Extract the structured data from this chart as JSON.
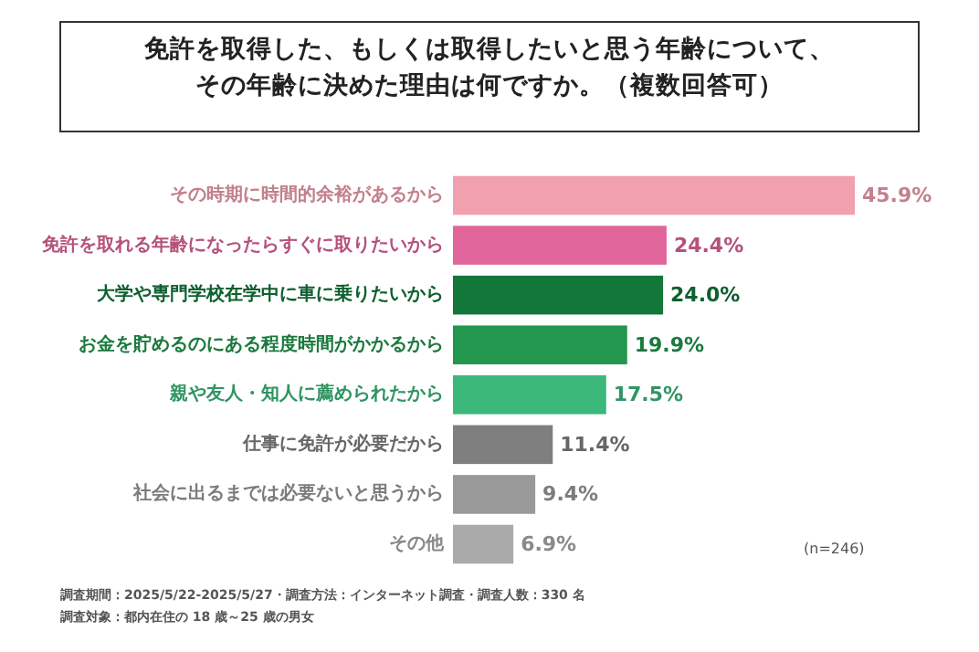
{
  "chart_data": {
    "type": "bar",
    "orientation": "horizontal",
    "title": "免許を取得した、もしくは取得したいと思う年齢について、その年齢に決めた理由は何ですか。（複数回答可）",
    "categories": [
      "その時期に時間的余裕があるから",
      "免許を取れる年齢になったらすぐに取りたいから",
      "大学や専門学校在学中に車に乗りたいから",
      "お金を貯めるのにある程度時間がかかるから",
      "親や友人・知人に薦められたから",
      "仕事に免許が必要だから",
      "社会に出るまでは必要ないと思うから",
      "その他"
    ],
    "values": [
      45.9,
      24.4,
      24.0,
      19.9,
      17.5,
      11.4,
      9.4,
      6.9
    ],
    "value_labels": [
      "45.9%",
      "24.4%",
      "24.0%",
      "19.9%",
      "17.5%",
      "11.4%",
      "9.4%",
      "6.9%"
    ],
    "colors": [
      "#f0a0ae",
      "#e0659a",
      "#13773a",
      "#22974d",
      "#3bb87a",
      "#7f7f7f",
      "#999999",
      "#aaaaaa"
    ],
    "annotations": [
      "(n=246)",
      "調査期間：2025/5/22-2025/5/27・調査方法：インターネット調査・調査人数：330 名",
      "調査対象：都内在住の 18 歳～25 歳の男女"
    ]
  }
}
